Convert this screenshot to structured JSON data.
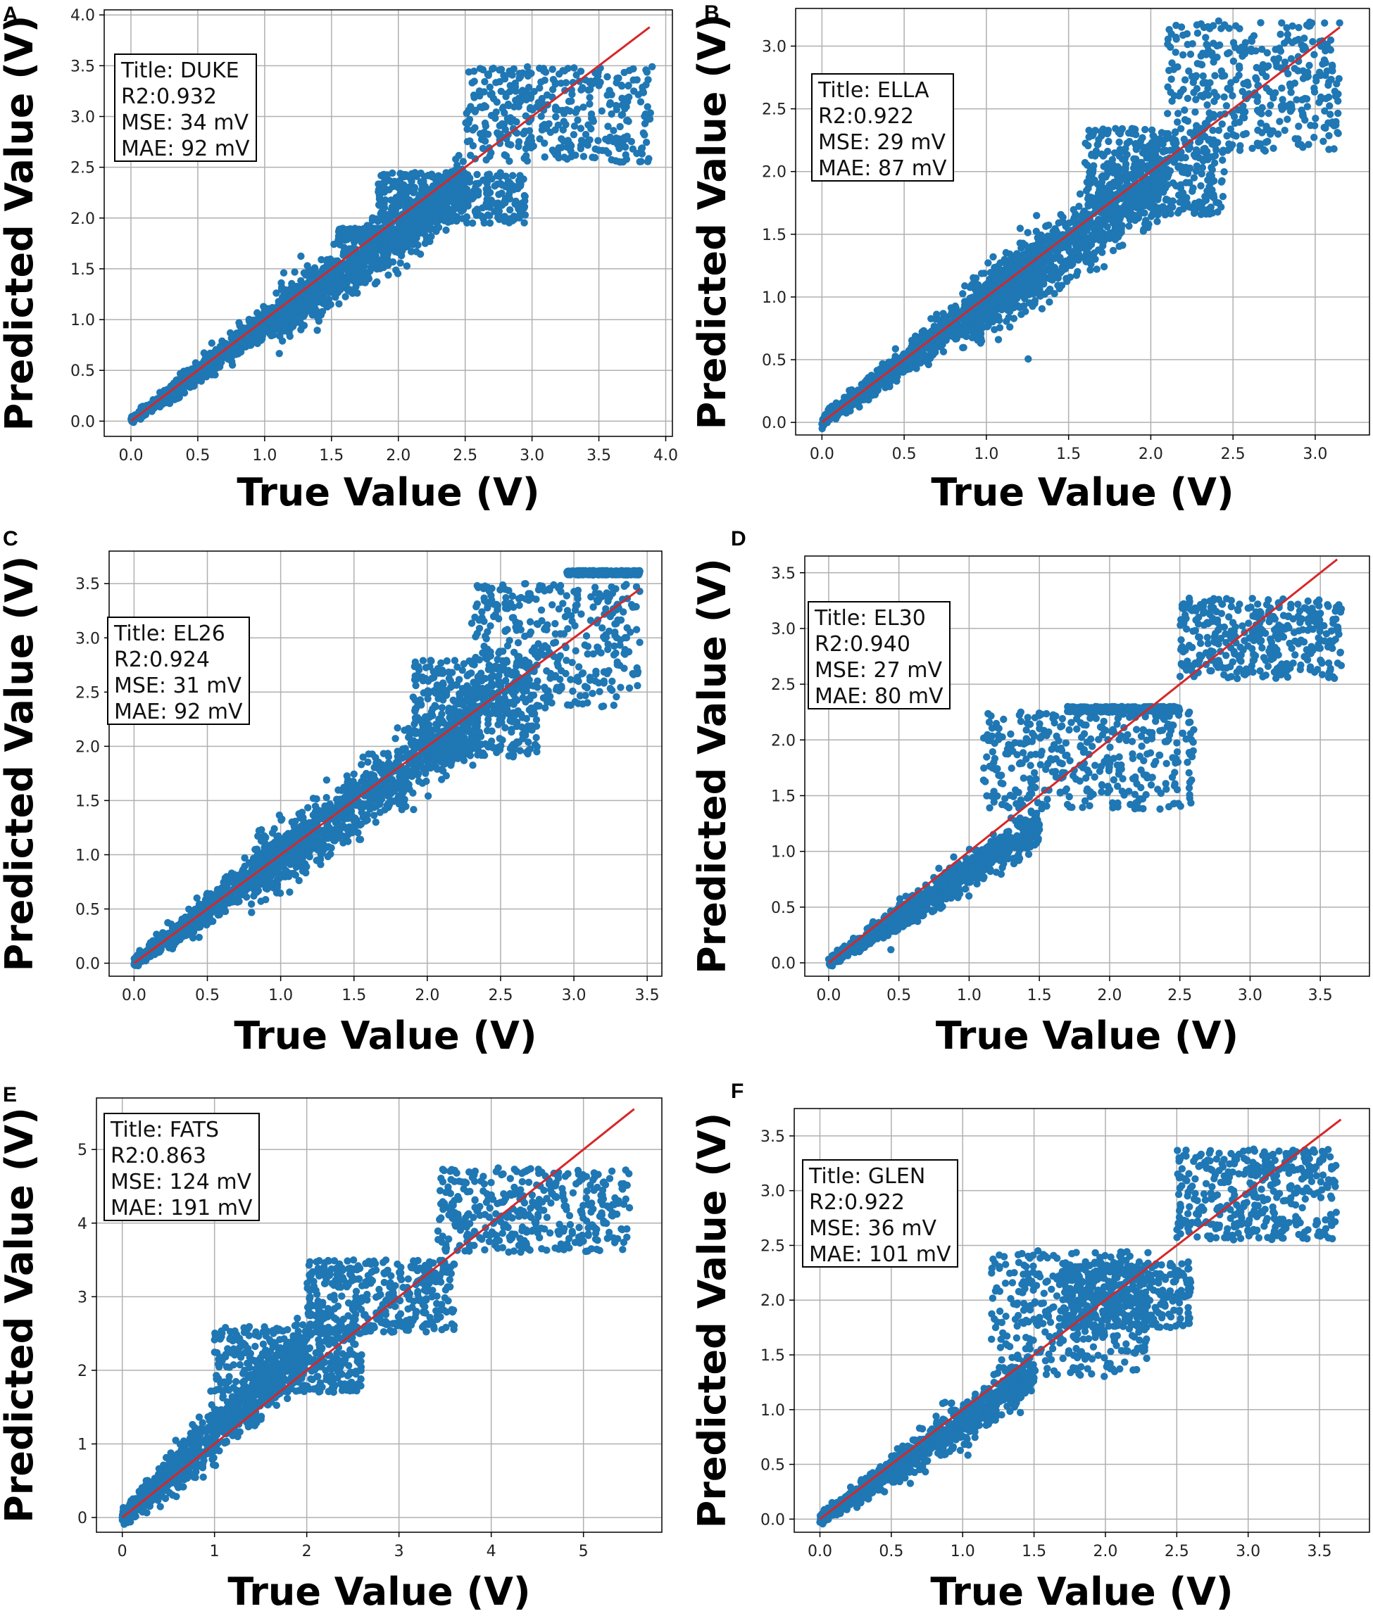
{
  "colors": {
    "points": "#1f77b4",
    "fit_line": "#d62728",
    "grid": "#b0b0b0"
  },
  "chart_data": [
    {
      "panel": "A",
      "type": "scatter",
      "title": "Title: DUKE",
      "r2": "R2:0.932",
      "mse": "MSE: 34 mV",
      "mae": "MAE: 92 mV",
      "xlabel": "True Value (V)",
      "ylabel": "Predicted Value (V)",
      "xlim": [
        -0.2,
        4.05
      ],
      "ylim": [
        -0.15,
        4.05
      ],
      "xticks": [
        0.0,
        0.5,
        1.0,
        1.5,
        2.0,
        2.5,
        3.0,
        3.5,
        4.0
      ],
      "xtick_labels": [
        "0.0",
        "0.5",
        "1.0",
        "1.5",
        "2.0",
        "2.5",
        "3.0",
        "3.5",
        "4.0"
      ],
      "yticks": [
        0.0,
        0.5,
        1.0,
        1.5,
        2.0,
        2.5,
        3.0,
        3.5,
        4.0
      ],
      "ytick_labels": [
        "0.0",
        "0.5",
        "1.0",
        "1.5",
        "2.0",
        "2.5",
        "3.0",
        "3.5",
        "4.0"
      ],
      "fit_line": {
        "x": [
          0.0,
          3.88
        ],
        "y": [
          0.0,
          3.88
        ]
      },
      "clusters": [
        {
          "x_range": [
            0.0,
            1.5
          ],
          "slope": 0.95,
          "spread": 0.14
        },
        {
          "x_range": [
            1.1,
            2.5
          ],
          "slope": 0.92,
          "spread": 0.25
        },
        {
          "x_range": [
            1.55,
            2.15
          ],
          "y_band": [
            1.78,
            1.9
          ]
        },
        {
          "x_range": [
            1.85,
            2.95
          ],
          "y_band": [
            1.95,
            2.45
          ]
        },
        {
          "x_range": [
            2.5,
            3.9
          ],
          "y_band": [
            2.55,
            3.5
          ]
        }
      ]
    },
    {
      "panel": "B",
      "type": "scatter",
      "title": "Title: ELLA",
      "r2": "R2:0.922",
      "mse": "MSE: 29 mV",
      "mae": "MAE: 87 mV",
      "xlabel": "True Value (V)",
      "ylabel": "Predicted Value (V)",
      "xlim": [
        -0.16,
        3.33
      ],
      "ylim": [
        -0.1,
        3.3
      ],
      "xticks": [
        0.0,
        0.5,
        1.0,
        1.5,
        2.0,
        2.5,
        3.0
      ],
      "xtick_labels": [
        "0.0",
        "0.5",
        "1.0",
        "1.5",
        "2.0",
        "2.5",
        "3.0"
      ],
      "yticks": [
        0.0,
        0.5,
        1.0,
        1.5,
        2.0,
        2.5,
        3.0
      ],
      "ytick_labels": [
        "0.0",
        "0.5",
        "1.0",
        "1.5",
        "2.0",
        "2.5",
        "3.0"
      ],
      "fit_line": {
        "x": [
          0.0,
          3.15
        ],
        "y": [
          0.0,
          3.15
        ]
      },
      "clusters": [
        {
          "x_range": [
            0.0,
            1.35
          ],
          "slope": 0.97,
          "spread": 0.16
        },
        {
          "x_range": [
            0.9,
            2.1
          ],
          "slope": 0.95,
          "spread": 0.26
        },
        {
          "x_range": [
            1.6,
            2.45
          ],
          "y_band": [
            1.65,
            2.35
          ]
        },
        {
          "x_range": [
            2.1,
            3.15
          ],
          "y_band": [
            2.15,
            3.2
          ]
        }
      ]
    },
    {
      "panel": "C",
      "type": "scatter",
      "title": "Title: EL26",
      "r2": "R2:0.924",
      "mse": "MSE: 31 mV",
      "mae": "MAE: 92 mV",
      "xlabel": "True Value (V)",
      "ylabel": "Predicted Value (V)",
      "xlim": [
        -0.17,
        3.6
      ],
      "ylim": [
        -0.12,
        3.8
      ],
      "xticks": [
        0.0,
        0.5,
        1.0,
        1.5,
        2.0,
        2.5,
        3.0,
        3.5
      ],
      "xtick_labels": [
        "0.0",
        "0.5",
        "1.0",
        "1.5",
        "2.0",
        "2.5",
        "3.0",
        "3.5"
      ],
      "yticks": [
        0.0,
        0.5,
        1.0,
        1.5,
        2.0,
        2.5,
        3.0,
        3.5
      ],
      "ytick_labels": [
        "0.0",
        "0.5",
        "1.0",
        "1.5",
        "2.0",
        "2.5",
        "3.0",
        "3.5"
      ],
      "fit_line": {
        "x": [
          0.0,
          3.45
        ],
        "y": [
          0.0,
          3.45
        ]
      },
      "clusters": [
        {
          "x_range": [
            0.0,
            1.25
          ],
          "slope": 0.98,
          "spread": 0.17
        },
        {
          "x_range": [
            0.8,
            2.35
          ],
          "slope": 0.97,
          "spread": 0.27
        },
        {
          "x_range": [
            1.9,
            2.75
          ],
          "y_band": [
            1.9,
            2.8
          ]
        },
        {
          "x_range": [
            2.3,
            3.45
          ],
          "y_band": [
            2.35,
            3.5
          ]
        },
        {
          "x_range": [
            2.95,
            3.45
          ],
          "y_band": [
            3.58,
            3.62
          ]
        }
      ]
    },
    {
      "panel": "D",
      "type": "scatter",
      "title": "Title: EL30",
      "r2": "R2:0.940",
      "mse": "MSE: 27 mV",
      "mae": "MAE: 80 mV",
      "xlabel": "True Value (V)",
      "ylabel": "Predicted Value (V)",
      "xlim": [
        -0.17,
        3.85
      ],
      "ylim": [
        -0.12,
        3.65
      ],
      "xticks": [
        0.0,
        0.5,
        1.0,
        1.5,
        2.0,
        2.5,
        3.0,
        3.5
      ],
      "xtick_labels": [
        "0.0",
        "0.5",
        "1.0",
        "1.5",
        "2.0",
        "2.5",
        "3.0",
        "3.5"
      ],
      "yticks": [
        0.0,
        0.5,
        1.0,
        1.5,
        2.0,
        2.5,
        3.0,
        3.5
      ],
      "ytick_labels": [
        "0.0",
        "0.5",
        "1.0",
        "1.5",
        "2.0",
        "2.5",
        "3.0",
        "3.5"
      ],
      "fit_line": {
        "x": [
          0.0,
          3.62
        ],
        "y": [
          0.0,
          3.62
        ]
      },
      "clusters": [
        {
          "x_range": [
            0.0,
            1.5
          ],
          "slope": 0.82,
          "spread": 0.15
        },
        {
          "x_range": [
            1.1,
            2.6
          ],
          "y_band": [
            1.38,
            2.25
          ]
        },
        {
          "x_range": [
            1.7,
            2.5
          ],
          "y_band": [
            2.25,
            2.3
          ]
        },
        {
          "x_range": [
            2.5,
            3.65
          ],
          "y_band": [
            2.55,
            3.28
          ]
        }
      ]
    },
    {
      "panel": "E",
      "type": "scatter",
      "title": "Title: FATS",
      "r2": "R2:0.863",
      "mse": "MSE: 124 mV",
      "mae": "MAE: 191 mV",
      "xlabel": "True Value (V)",
      "ylabel": "Predicted Value (V)",
      "xlim": [
        -0.28,
        5.85
      ],
      "ylim": [
        -0.2,
        5.7
      ],
      "xticks": [
        0,
        1,
        2,
        3,
        4,
        5
      ],
      "xtick_labels": [
        "0",
        "1",
        "2",
        "3",
        "4",
        "5"
      ],
      "yticks": [
        0,
        1,
        2,
        3,
        4,
        5
      ],
      "ytick_labels": [
        "0",
        "1",
        "2",
        "3",
        "4",
        "5"
      ],
      "fit_line": {
        "x": [
          0.0,
          5.55
        ],
        "y": [
          0.0,
          5.55
        ]
      },
      "clusters": [
        {
          "x_range": [
            0.0,
            2.0
          ],
          "slope": 1.15,
          "spread": 0.35
        },
        {
          "x_range": [
            1.0,
            2.6
          ],
          "y_band": [
            1.7,
            2.6
          ]
        },
        {
          "x_range": [
            2.0,
            3.6
          ],
          "y_band": [
            2.5,
            3.5
          ]
        },
        {
          "x_range": [
            3.4,
            5.5
          ],
          "y_band": [
            3.6,
            4.75
          ]
        }
      ]
    },
    {
      "panel": "F",
      "type": "scatter",
      "title": "Title: GLEN",
      "r2": "R2:0.922",
      "mse": "MSE: 36 mV",
      "mae": "MAE: 101 mV",
      "xlabel": "True Value (V)",
      "ylabel": "Predicted Value (V)",
      "xlim": [
        -0.18,
        3.85
      ],
      "ylim": [
        -0.12,
        3.75
      ],
      "xticks": [
        0.0,
        0.5,
        1.0,
        1.5,
        2.0,
        2.5,
        3.0,
        3.5
      ],
      "xtick_labels": [
        "0.0",
        "0.5",
        "1.0",
        "1.5",
        "2.0",
        "2.5",
        "3.0",
        "3.5"
      ],
      "yticks": [
        0.0,
        0.5,
        1.0,
        1.5,
        2.0,
        2.5,
        3.0,
        3.5
      ],
      "ytick_labels": [
        "0.0",
        "0.5",
        "1.0",
        "1.5",
        "2.0",
        "2.5",
        "3.0",
        "3.5"
      ],
      "fit_line": {
        "x": [
          0.0,
          3.65
        ],
        "y": [
          0.0,
          3.65
        ]
      },
      "clusters": [
        {
          "x_range": [
            0.0,
            1.5
          ],
          "slope": 0.88,
          "spread": 0.18
        },
        {
          "x_range": [
            1.2,
            2.3
          ],
          "y_band": [
            1.3,
            2.45
          ]
        },
        {
          "x_range": [
            1.7,
            2.6
          ],
          "y_band": [
            1.75,
            2.35
          ]
        },
        {
          "x_range": [
            2.5,
            3.62
          ],
          "y_band": [
            2.55,
            3.38
          ]
        }
      ]
    }
  ]
}
